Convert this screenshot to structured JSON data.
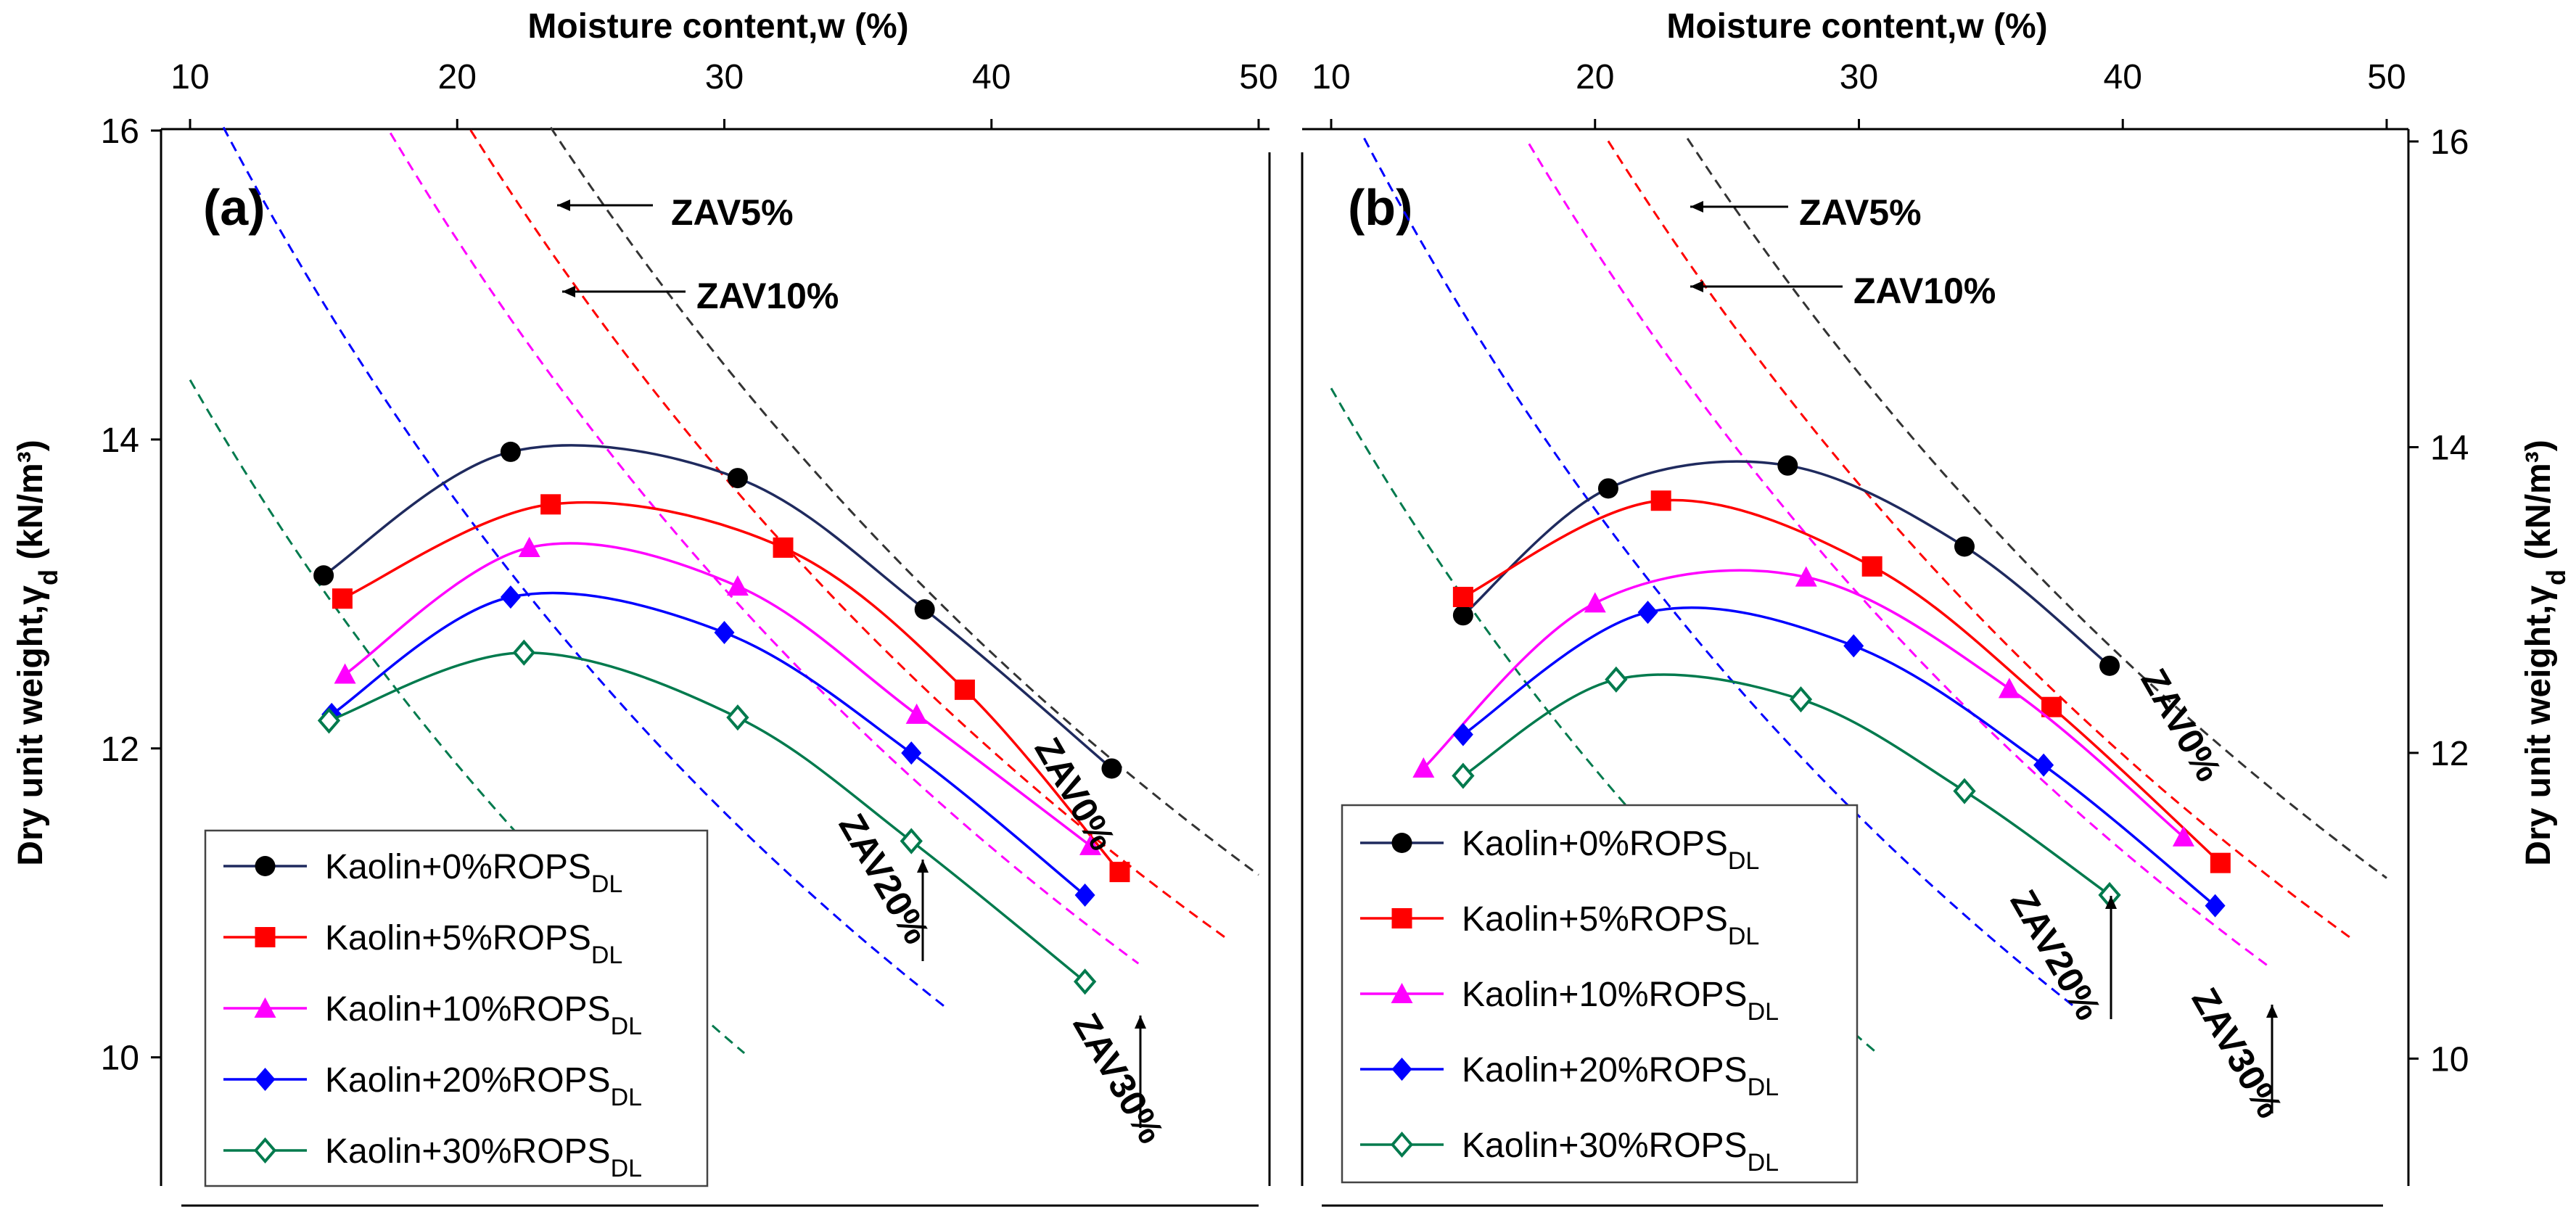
{
  "chart_data": [
    {
      "type": "line",
      "panel_label": "(a)",
      "xlabel": "Moisture content,w (%)",
      "ylabel": "Dry unit weight,",
      "ylabel_symbol": "γ",
      "ylabel_subscript": "d",
      "ylabel_unit": " (kN/m³)",
      "xlim": [
        10,
        50
      ],
      "ylim": [
        9.2,
        16
      ],
      "x_ticks": [
        "10",
        "20",
        "30",
        "40",
        "50"
      ],
      "y_ticks": [
        "10",
        "12",
        "14",
        "16"
      ],
      "y_axis_side": "left",
      "series": [
        {
          "name": "Kaolin+0%ROPS",
          "sub": "DL",
          "color": "#000000",
          "line_color": "#1f2a5e",
          "marker": "circle",
          "x": [
            15.0,
            22.0,
            30.5,
            37.5,
            44.5
          ],
          "y": [
            13.12,
            13.92,
            13.75,
            12.9,
            11.87
          ]
        },
        {
          "name": "Kaolin+5%ROPS",
          "sub": "DL",
          "color": "#ff0000",
          "line_color": "#ff0000",
          "marker": "square",
          "x": [
            15.7,
            23.5,
            32.2,
            39.0,
            44.8
          ],
          "y": [
            12.97,
            13.58,
            13.3,
            12.38,
            11.2
          ]
        },
        {
          "name": "Kaolin+10%ROPS",
          "sub": "DL",
          "color": "#ff00ff",
          "line_color": "#ff00ff",
          "marker": "triangle",
          "x": [
            15.8,
            22.7,
            30.5,
            37.2,
            43.7
          ],
          "y": [
            12.48,
            13.3,
            13.05,
            12.22,
            11.37
          ]
        },
        {
          "name": "Kaolin+20%ROPS",
          "sub": "DL",
          "color": "#0000ff",
          "line_color": "#0000ff",
          "marker": "diamond",
          "x": [
            15.3,
            22.0,
            30.0,
            37.0,
            43.5
          ],
          "y": [
            12.22,
            12.98,
            12.75,
            11.97,
            11.05
          ]
        },
        {
          "name": "Kaolin+30%ROPS",
          "sub": "DL",
          "color": "#007a4d",
          "line_color": "#007a4d",
          "marker": "diamond-open",
          "x": [
            15.2,
            22.5,
            30.5,
            37.0,
            43.5
          ],
          "y": [
            12.18,
            12.62,
            12.2,
            11.4,
            10.49
          ]
        }
      ],
      "zav_curves": [
        {
          "name": "ZAV0%",
          "color": "#333333",
          "air_voids": 0
        },
        {
          "name": "ZAV5%",
          "color": "#ff0000",
          "air_voids": 5
        },
        {
          "name": "ZAV10%",
          "color": "#ff00ff",
          "air_voids": 10
        },
        {
          "name": "ZAV20%",
          "color": "#0000ff",
          "air_voids": 20
        },
        {
          "name": "ZAV30%",
          "color": "#007a4d",
          "air_voids": 30
        }
      ],
      "annotations": [
        "ZAV5%",
        "ZAV10%",
        "ZAV0%",
        "ZAV20%",
        "ZAV30%"
      ],
      "legend_position": "bottom-left"
    },
    {
      "type": "line",
      "panel_label": "(b)",
      "xlabel": "Moisture content,w (%)",
      "ylabel": "Dry unit weight,",
      "ylabel_symbol": "γ",
      "ylabel_subscript": "d",
      "ylabel_unit": " (kN/m³)",
      "xlim": [
        10,
        50
      ],
      "ylim": [
        9.2,
        16
      ],
      "x_ticks": [
        "10",
        "20",
        "30",
        "40",
        "50"
      ],
      "y_ticks": [
        "10",
        "12",
        "14",
        "16"
      ],
      "y_axis_side": "right",
      "series": [
        {
          "name": "Kaolin+0%ROPS",
          "sub": "DL",
          "color": "#000000",
          "line_color": "#1f2a5e",
          "marker": "circle",
          "x": [
            15.0,
            20.5,
            27.3,
            34.0,
            39.5
          ],
          "y": [
            12.9,
            13.73,
            13.88,
            13.35,
            12.57
          ]
        },
        {
          "name": "Kaolin+5%ROPS",
          "sub": "DL",
          "color": "#ff0000",
          "line_color": "#ff0000",
          "marker": "square",
          "x": [
            15.0,
            22.5,
            30.5,
            37.3,
            43.7
          ],
          "y": [
            13.02,
            13.65,
            13.22,
            12.3,
            11.28
          ]
        },
        {
          "name": "Kaolin+10%ROPS",
          "sub": "DL",
          "color": "#ff00ff",
          "line_color": "#ff00ff",
          "marker": "triangle",
          "x": [
            13.5,
            20.0,
            28.0,
            35.7,
            42.3
          ],
          "y": [
            11.9,
            12.98,
            13.15,
            12.42,
            11.45
          ]
        },
        {
          "name": "Kaolin+20%ROPS",
          "sub": "DL",
          "color": "#0000ff",
          "line_color": "#0000ff",
          "marker": "diamond",
          "x": [
            15.0,
            22.0,
            29.8,
            37.0,
            43.5
          ],
          "y": [
            12.12,
            12.92,
            12.7,
            11.92,
            11.0
          ]
        },
        {
          "name": "Kaolin+30%ROPS",
          "sub": "DL",
          "color": "#007a4d",
          "line_color": "#007a4d",
          "marker": "diamond-open",
          "x": [
            15.0,
            20.8,
            27.8,
            34.0,
            39.5
          ],
          "y": [
            11.85,
            12.48,
            12.35,
            11.75,
            11.07
          ]
        }
      ],
      "zav_curves": [
        {
          "name": "ZAV0%",
          "color": "#333333",
          "air_voids": 0
        },
        {
          "name": "ZAV5%",
          "color": "#ff0000",
          "air_voids": 5
        },
        {
          "name": "ZAV10%",
          "color": "#ff00ff",
          "air_voids": 10
        },
        {
          "name": "ZAV20%",
          "color": "#0000ff",
          "air_voids": 20
        },
        {
          "name": "ZAV30%",
          "color": "#007a4d",
          "air_voids": 30
        }
      ],
      "annotations": [
        "ZAV5%",
        "ZAV10%",
        "ZAV0%",
        "ZAV20%",
        "ZAV30%"
      ],
      "legend_position": "bottom-left"
    }
  ]
}
